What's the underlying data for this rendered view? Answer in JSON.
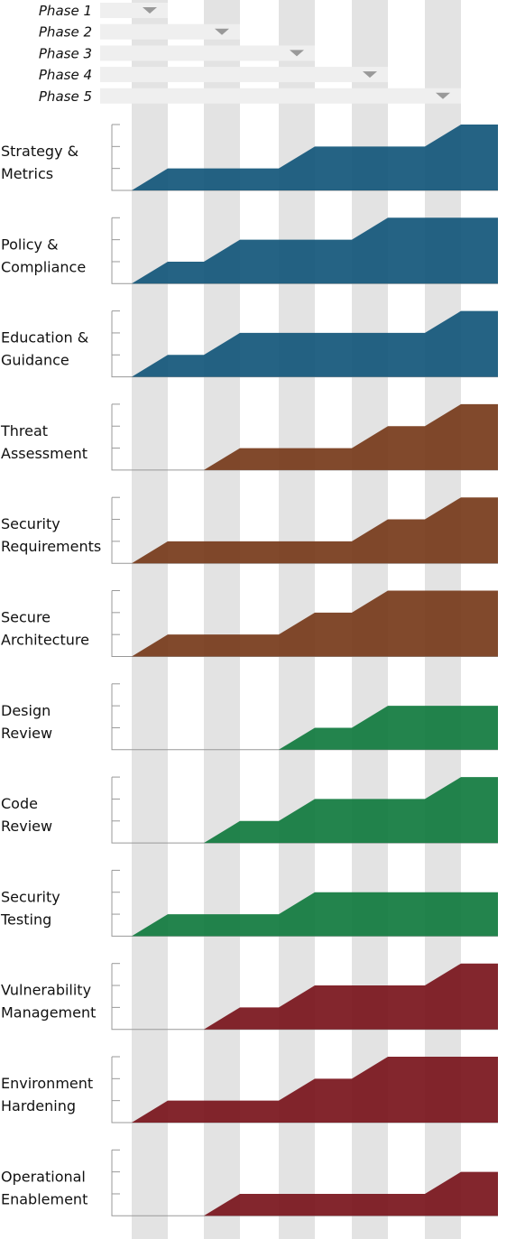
{
  "phases": [
    "Phase 1",
    "Phase 2",
    "Phase 3",
    "Phase 4",
    "Phase 5"
  ],
  "colors": {
    "column": "#e3e3e3",
    "phase_bar": "#efefef",
    "arrow": "#999999",
    "axis": "#999999",
    "governance": "#12567a",
    "construction": "#763a1a",
    "verification": "#107a3e",
    "deployment": "#78141b"
  },
  "chart_data": {
    "type": "area",
    "x": [
      "Phase 1",
      "Phase 2",
      "Phase 3",
      "Phase 4",
      "Phase 5"
    ],
    "ylim": [
      0,
      3
    ],
    "series": [
      {
        "label1": "Strategy &",
        "label2": "Metrics",
        "group": "governance",
        "values": [
          1,
          1,
          2,
          2,
          3
        ]
      },
      {
        "label1": "Policy &",
        "label2": "Compliance",
        "group": "governance",
        "values": [
          1,
          2,
          2,
          3,
          3
        ]
      },
      {
        "label1": "Education &",
        "label2": "Guidance",
        "group": "governance",
        "values": [
          1,
          2,
          2,
          2,
          3
        ]
      },
      {
        "label1": "Threat",
        "label2": "Assessment",
        "group": "construction",
        "values": [
          0,
          1,
          1,
          2,
          3
        ]
      },
      {
        "label1": "Security",
        "label2": "Requirements",
        "group": "construction",
        "values": [
          1,
          1,
          1,
          2,
          3
        ]
      },
      {
        "label1": "Secure",
        "label2": "Architecture",
        "group": "construction",
        "values": [
          1,
          1,
          2,
          3,
          3
        ]
      },
      {
        "label1": "Design",
        "label2": "Review",
        "group": "verification",
        "values": [
          0,
          0,
          1,
          2,
          2
        ]
      },
      {
        "label1": "Code",
        "label2": "Review",
        "group": "verification",
        "values": [
          0,
          1,
          2,
          2,
          3
        ]
      },
      {
        "label1": "Security",
        "label2": "Testing",
        "group": "verification",
        "values": [
          1,
          1,
          2,
          2,
          2
        ]
      },
      {
        "label1": "Vulnerability",
        "label2": "Management",
        "group": "deployment",
        "values": [
          0,
          1,
          2,
          2,
          3
        ]
      },
      {
        "label1": "Environment",
        "label2": "Hardening",
        "group": "deployment",
        "values": [
          1,
          1,
          2,
          3,
          3
        ]
      },
      {
        "label1": "Operational",
        "label2": "Enablement",
        "group": "deployment",
        "values": [
          0,
          1,
          1,
          1,
          2
        ]
      }
    ]
  }
}
